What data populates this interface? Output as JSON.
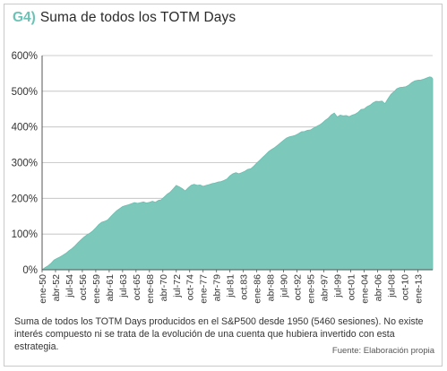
{
  "figure": {
    "code": "G4)",
    "title": "Suma de todos los TOTM Days",
    "caption": "Suma de todos los TOTM Days producidos en el S&P500 desde 1950 (5460 sesiones). No existe interés compuesto ni se trata de la evolución de una cuenta que hubiera invertido con esta estrategia.",
    "source": "Fuente: Elaboración propia"
  },
  "colors": {
    "area_fill": "#7cc8ba",
    "area_stroke": "#6cbdb0",
    "grid": "#bdbdbd",
    "axis": "#555555",
    "code": "#6cc2b4"
  },
  "chart_data": {
    "type": "area",
    "title": "Suma de todos los TOTM Days",
    "xlabel": "",
    "ylabel": "",
    "ylim": [
      0,
      600
    ],
    "yticks": [
      0,
      100,
      200,
      300,
      400,
      500,
      600
    ],
    "ytick_labels": [
      "0%",
      "100%",
      "200%",
      "300%",
      "400%",
      "500%",
      "600%"
    ],
    "grid": true,
    "legend": "none",
    "xlim": [
      1950.0,
      2015.5
    ],
    "xtick_positions": [
      1950.0,
      1952.25,
      1954.5,
      1956.75,
      1959.0,
      1961.25,
      1963.5,
      1965.75,
      1968.0,
      1970.25,
      1972.5,
      1974.75,
      1977.0,
      1979.25,
      1981.5,
      1983.75,
      1986.0,
      1988.25,
      1990.5,
      1992.75,
      1995.0,
      1997.25,
      1999.5,
      2001.75,
      2004.0,
      2006.25,
      2008.5,
      2010.75,
      2013.0
    ],
    "xtick_labels": [
      "ene-50",
      "abr-52",
      "jul-54",
      "oct-56",
      "ene-59",
      "abr-61",
      "jul-63",
      "oct-65",
      "ene-68",
      "abr-70",
      "jul-72",
      "oct-74",
      "ene-77",
      "abr-79",
      "jul-81",
      "oct.83",
      "ene-86",
      "abr-88",
      "jul-90",
      "oct-92",
      "ene-95",
      "abr-97",
      "jul-99",
      "oct-01",
      "ene-04",
      "abr-06",
      "jul-08",
      "oct-10",
      "ene-13"
    ],
    "series": [
      {
        "values_unit": "%",
        "x": [
          1950.0,
          1950.5,
          1951.0,
          1951.5,
          1952.0,
          1952.5,
          1953.0,
          1953.5,
          1954.0,
          1954.5,
          1955.0,
          1955.5,
          1956.0,
          1956.5,
          1957.0,
          1957.5,
          1958.0,
          1958.5,
          1959.0,
          1959.5,
          1960.0,
          1960.5,
          1961.0,
          1961.5,
          1962.0,
          1962.5,
          1963.0,
          1963.5,
          1964.0,
          1964.5,
          1965.0,
          1965.5,
          1966.0,
          1966.5,
          1967.0,
          1967.5,
          1968.0,
          1968.5,
          1969.0,
          1969.5,
          1970.0,
          1970.5,
          1971.0,
          1971.5,
          1972.0,
          1972.5,
          1973.0,
          1973.5,
          1974.0,
          1974.5,
          1975.0,
          1975.5,
          1976.0,
          1976.5,
          1977.0,
          1977.5,
          1978.0,
          1978.5,
          1979.0,
          1979.5,
          1980.0,
          1980.5,
          1981.0,
          1981.5,
          1982.0,
          1982.5,
          1983.0,
          1983.5,
          1984.0,
          1984.5,
          1985.0,
          1985.5,
          1986.0,
          1986.5,
          1987.0,
          1987.5,
          1988.0,
          1988.5,
          1989.0,
          1989.5,
          1990.0,
          1990.5,
          1991.0,
          1991.5,
          1992.0,
          1992.5,
          1993.0,
          1993.5,
          1994.0,
          1994.5,
          1995.0,
          1995.5,
          1996.0,
          1996.5,
          1997.0,
          1997.5,
          1998.0,
          1998.5,
          1999.0,
          1999.5,
          2000.0,
          2000.5,
          2001.0,
          2001.5,
          2002.0,
          2002.5,
          2003.0,
          2003.5,
          2004.0,
          2004.5,
          2005.0,
          2005.5,
          2006.0,
          2006.5,
          2007.0,
          2007.5,
          2008.0,
          2008.5,
          2009.0,
          2009.5,
          2010.0,
          2010.5,
          2011.0,
          2011.5,
          2012.0,
          2012.5,
          2013.0,
          2013.5,
          2014.0,
          2014.5,
          2015.0,
          2015.3,
          2015.5
        ],
        "values": [
          0,
          5,
          10,
          18,
          28,
          33,
          36,
          40,
          45,
          53,
          60,
          68,
          76,
          83,
          90,
          97,
          103,
          110,
          118,
          126,
          132,
          135,
          140,
          150,
          158,
          165,
          170,
          176,
          180,
          183,
          186,
          188,
          185,
          187,
          190,
          188,
          190,
          192,
          188,
          193,
          196,
          205,
          213,
          218,
          226,
          235,
          232,
          228,
          222,
          230,
          236,
          238,
          236,
          238,
          235,
          237,
          238,
          240,
          242,
          246,
          248,
          251,
          254,
          262,
          268,
          272,
          270,
          273,
          276,
          280,
          282,
          290,
          300,
          308,
          315,
          322,
          330,
          337,
          343,
          350,
          356,
          362,
          368,
          372,
          375,
          378,
          382,
          386,
          386,
          390,
          392,
          398,
          402,
          405,
          410,
          418,
          425,
          435,
          440,
          428,
          432,
          430,
          432,
          430,
          434,
          436,
          440,
          448,
          450,
          458,
          462,
          468,
          471,
          470,
          472,
          466,
          480,
          492,
          498,
          506,
          510,
          512,
          514,
          518,
          524,
          528,
          530,
          532,
          535,
          538,
          540,
          538,
          535
        ]
      }
    ]
  }
}
